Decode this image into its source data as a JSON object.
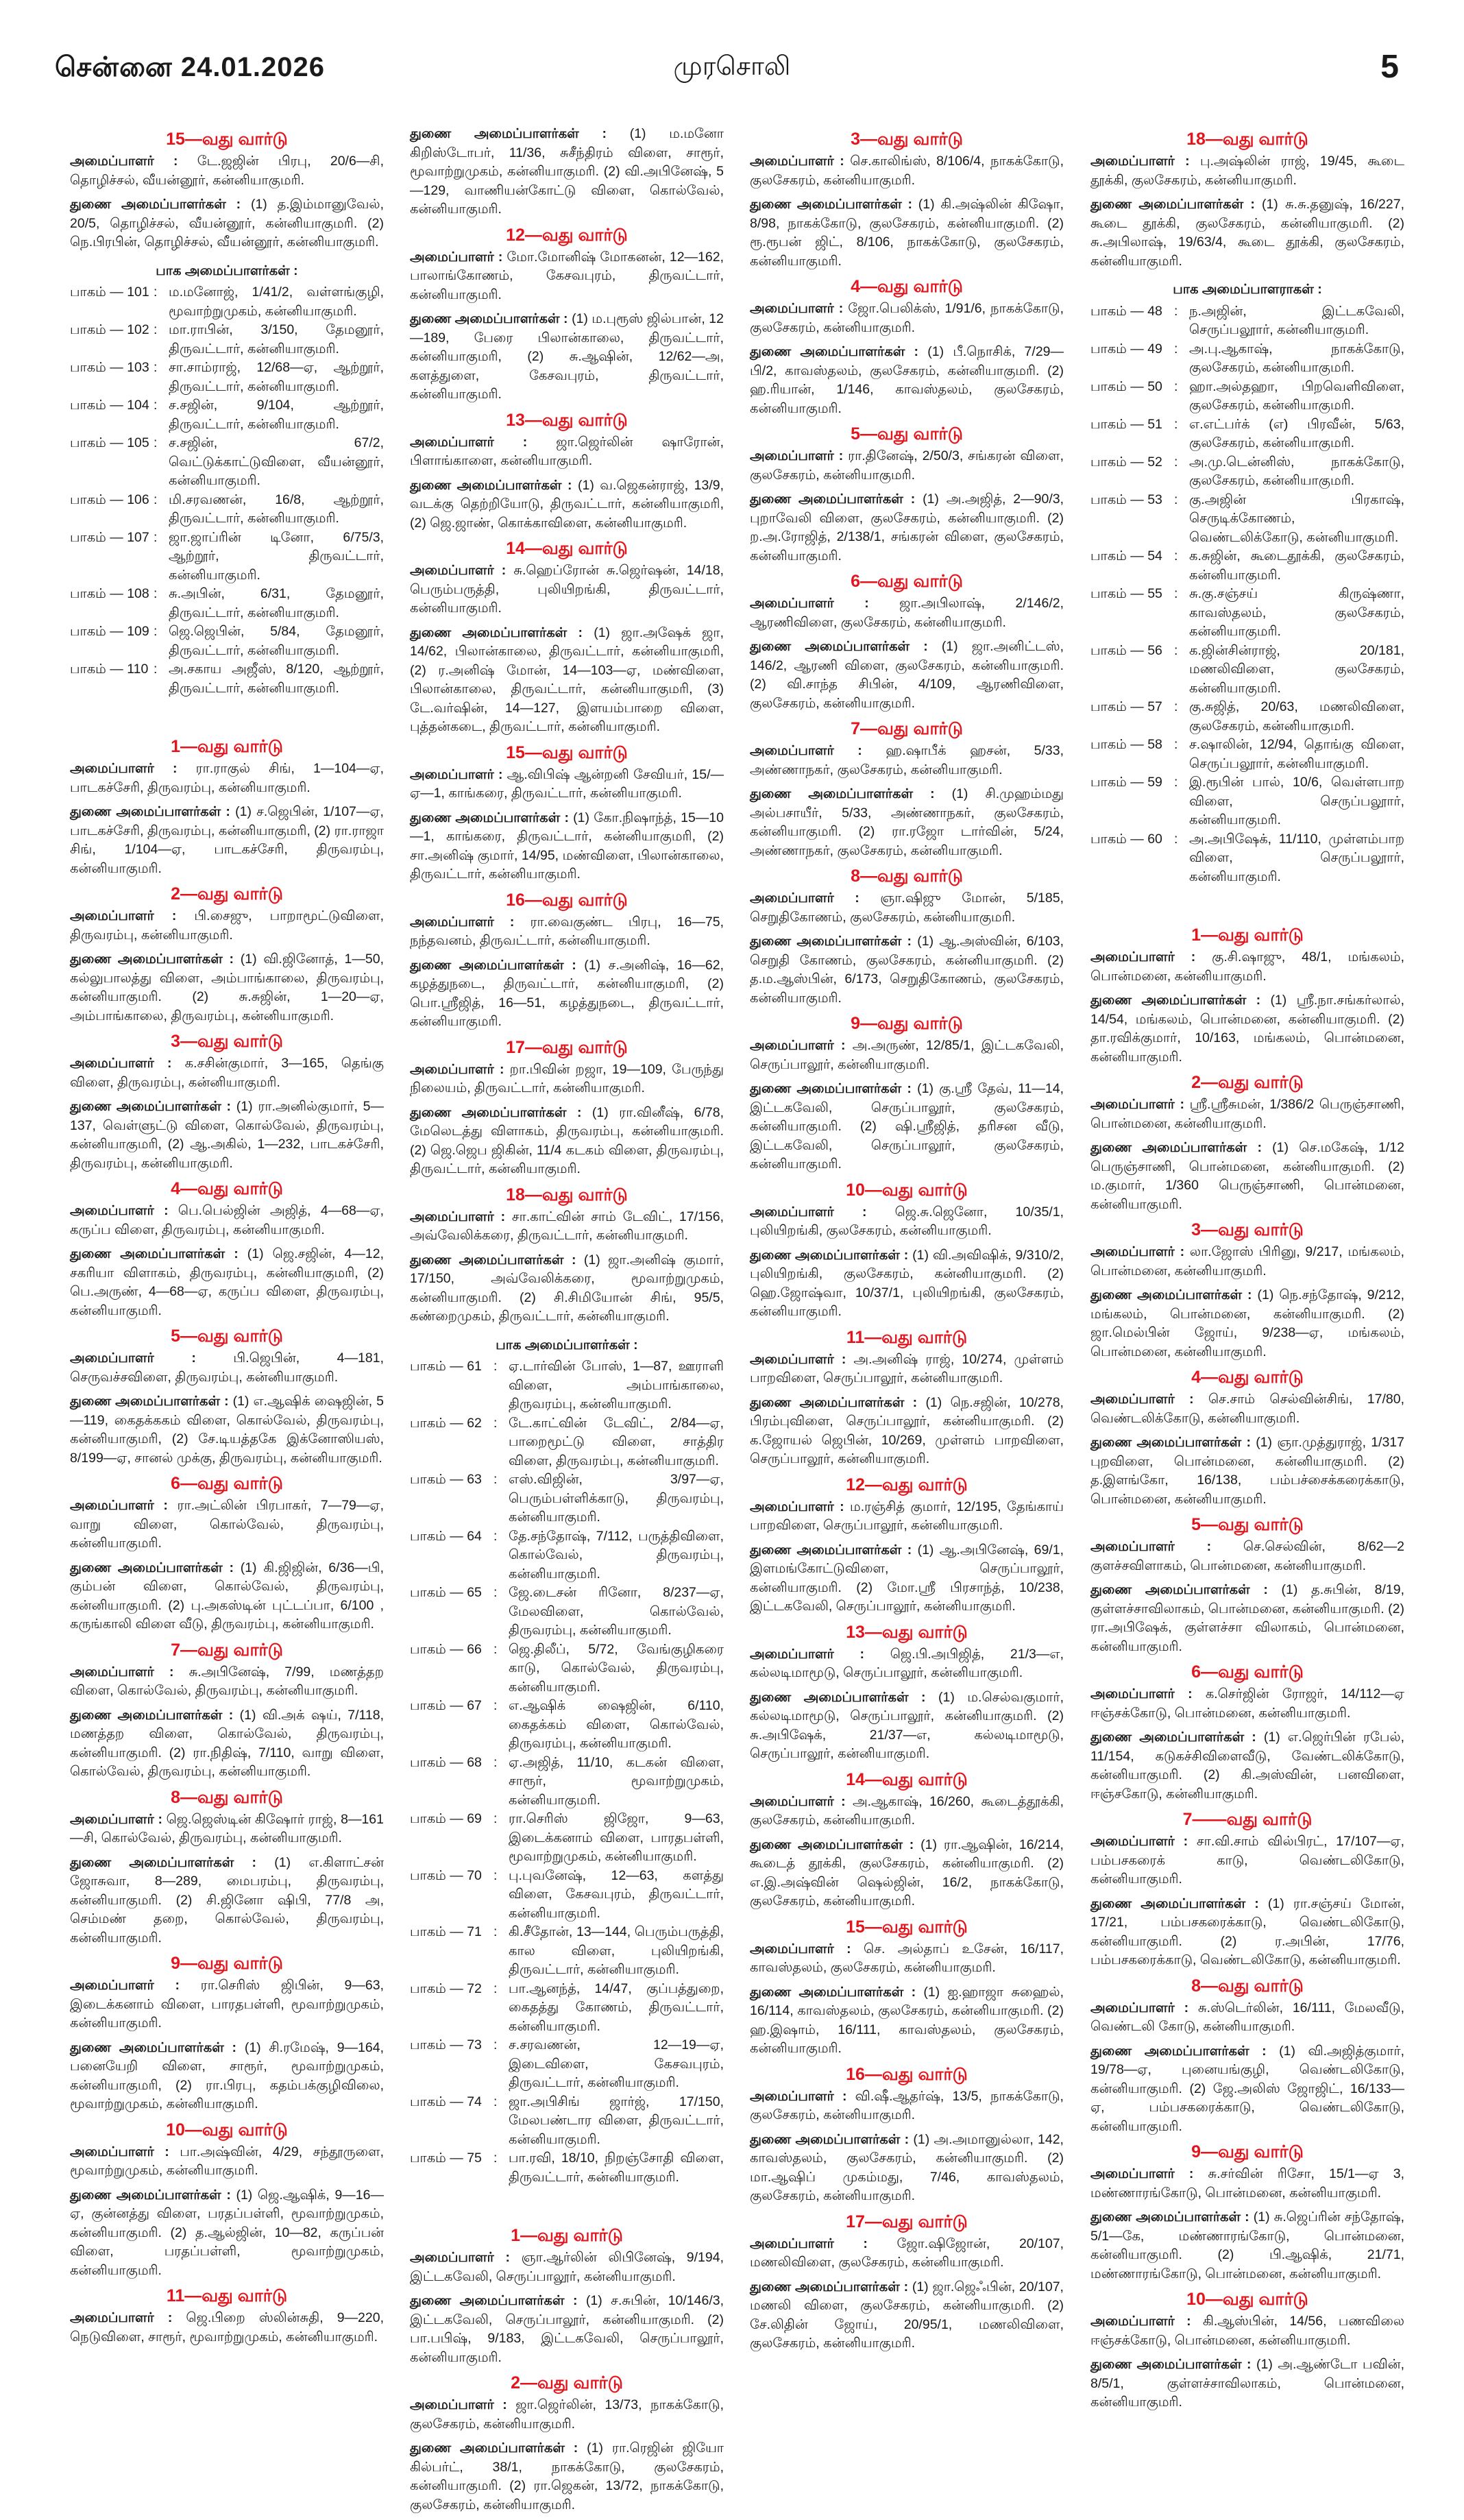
{
  "header": {
    "date": "சென்னை 24.01.2026",
    "title": "முரசொலி",
    "page": "5"
  },
  "labels": {
    "organizer": "அமைப்பாளர் :",
    "deputies": "துணை அமைப்பாளர்கள் :",
    "colon": ":"
  },
  "colors": {
    "heading": "#e4141c",
    "text": "#1a1a1a"
  },
  "columns": [
    [
      {
        "heading": "15—வது வார்டு",
        "main": "டே.ஜஜின் பிரபு, 20/6—சி, தொழிச்சல், வீயன்னூர், கன்னியாகுமரி.",
        "deputies": "(1) த.இம்மானுவேல், 20/5, தொழிச்சல், வீயன்னூர், கன்னியாகுமரி. (2) நெ.பிரபின், தொழிச்சல், வீயன்னூர், கன்னியாகுமரி."
      },
      {
        "booth_heading": "பாக அமைப்பாளர்கள் :",
        "rows": [
          {
            "label": "பாகம் — 101",
            "text": "ம.மனோஜ், 1/41/2, வள்ளங்குழி, மூவாற்றுமுகம், கன்னியாகுமரி."
          },
          {
            "label": "பாகம் — 102",
            "text": "மா.ராபின், 3/150, தேமனூர், திருவட்டார், கன்னியாகுமரி."
          },
          {
            "label": "பாகம் — 103",
            "text": "சா.சாம்ராஜ், 12/68—ஏ, ஆற்றூர், திருவட்டார், கன்னியாகுமரி."
          },
          {
            "label": "பாகம் — 104",
            "text": "ச.சஜின், 9/104, ஆற்றூர், திருவட்டார், கன்னியாகுமரி."
          },
          {
            "label": "பாகம் — 105",
            "text": "ச.சஜின், 67/2, வெட்டுக்காட்டுவிளை, வீயன்னூர், கன்னியாகுமரி."
          },
          {
            "label": "பாகம் — 106",
            "text": "மி.சரவணன், 16/8, ஆற்றூர், திருவட்டார், கன்னியாகுமரி."
          },
          {
            "label": "பாகம் — 107",
            "text": "ஜா.ஜாப்ரின் டினோ, 6/75/3, ஆற்றூர், திருவட்டார், கன்னியாகுமரி."
          },
          {
            "label": "பாகம் — 108",
            "text": "சு.அபின், 6/31, தேமனூர், திருவட்டார், கன்னியாகுமரி."
          },
          {
            "label": "பாகம் — 109",
            "text": "ஜெ.ஜெபின், 5/84, தேமனூர், திருவட்டார், கன்னியாகுமரி."
          },
          {
            "label": "பாகம் — 110",
            "text": "அ.சகாய அஜீஸ், 8/120, ஆற்றூர், திருவட்டார், கன்னியாகுமரி."
          }
        ]
      },
      {
        "heading": "1—வது வார்டு",
        "main": "ரா.ராகுல் சிங், 1—104—ஏ, பாடகச்சேரி, திருவரம்பு, கன்னியாகுமரி.",
        "deputies": "(1) ச.ஜெபின், 1/107—ஏ, பாடகச்சேரி, திருவரம்பு, கன்னியாகுமரி, (2) ரா.ராஜா சிங், 1/104—ஏ, பாடகச்சேரி, திருவரம்பு, கன்னியாகுமரி."
      },
      {
        "heading": "2—வது வார்டு",
        "main": "பி.சைஜு, பாறாமூட்டுவிளை, திருவரம்பு, கன்னியாகுமரி.",
        "deputies": "(1) வி.ஜினோத், 1—50, கல்லுபாலத்து விளை, அம்பாங்காலை, திருவரம்பு, கன்னியாகுமரி. (2) சு.சுஜின், 1—20—ஏ, அம்பாங்காலை, திருவரம்பு, கன்னியாகுமரி."
      },
      {
        "heading": "3—வது வார்டு",
        "main": "க.சசின்குமார், 3—165, தெங்கு விளை, திருவரம்பு, கன்னியாகுமரி.",
        "deputies": "(1) ரா.அனில்குமார், 5—137, வெள்ளுட்டு விளை, கொல்வேல், திருவரம்பு, கன்னியாகுமரி, (2) ஆ.அகில், 1—232, பாடகச்சேரி, திருவரம்பு, கன்னியாகுமரி."
      },
      {
        "heading": "4—வது வார்டு",
        "main": "பெ.பெல்ஜின் அஜித், 4—68—ஏ, கருப்ப விளை, திருவரம்பு, கன்னியாகுமரி.",
        "deputies": "(1) ஜெ.சஜின், 4—12, சகரியா விளாகம், திருவரம்பு, கன்னியாகுமரி, (2) பெ.அருண், 4—68—ஏ, கருப்ப விளை, திருவரம்பு, கன்னியாகுமரி."
      },
      {
        "heading": "5—வது வார்டு",
        "main": "பி.ஜெபின், 4—181, செருவச்சவிளை, திருவரம்பு, கன்னியாகுமரி.",
        "deputies": "(1) எ.ஆஷிக் ஷைஜின், 5—119, கைதக்ககம் விளை, கொல்வேல், திருவரம்பு, கன்னியாகுமரி, (2) சே.டியத்தகே இக்னோஸியஸ், 8/199—ஏ, சானல் முக்கு, திருவரம்பு, கன்னியாகுமரி."
      },
      {
        "heading": "6—வது வார்டு",
        "main": "ரா.அட்லின் பிரபாகர், 7—79—ஏ, வாறு விளை, கொல்வேல், திருவரம்பு, கன்னியாகுமரி.",
        "deputies": "(1) கி.ஜிஜின், 6/36—பி, கும்பன் விளை, கொல்வேல், திருவரம்பு, கன்னியாகுமரி. (2) பு.அகஸ்டின் புட்டப்பா, 6/100 , கருங்காலி விளை வீடு, திருவரம்பு, கன்னியாகுமரி."
      },
      {
        "heading": "7—வது வார்டு",
        "main": "சு.அபினேஷ், 7/99, மணத்தற விளை, கொல்வேல், திருவரம்பு, கன்னியாகுமரி.",
        "deputies": "(1) வி.அக் ஷய், 7/118, மணத்தற விளை, கொல்வேல், திருவரம்பு, கன்னியாகுமரி. (2) ரா.நிதிஷ், 7/110, வாறு விளை, கொல்வேல், திருவரம்பு, கன்னியாகுமரி."
      },
      {
        "heading": "8—வது வார்டு",
        "main": "ஜெ.ஜெஸ்டின் கிஷோர் ராஜ், 8—161—சி, கொல்வேல், திருவரம்பு, கன்னியாகுமரி.",
        "deputies": "(1) எ.கிளாட்சன் ஜோசுவா, 8—289, மைபரம்பு, திருவரம்பு, கன்னியாகுமரி. (2) சி.ஜினோ ஷிபி, 77/8 அ, செம்மண் தறை, கொல்வேல், திருவரம்பு, கன்னியாகுமரி."
      },
      {
        "heading": "9—வது வார்டு",
        "main": "ரா.செரிஸ் ஜிபின், 9—63, இடைக்கனாம் விளை, பாரதபள்ளி, மூவாற்றுமுகம், கன்னியாகுமரி.",
        "deputies": "(1) சி.ரமேஷ், 9—164, பனையேறி விளை, சாரூர், மூவாற்றுமுகம், கன்னியாகுமரி, (2) ரா.பிரபு, கதம்பக்குழிவிலை, மூவாற்றுமுகம், கன்னியாகுமரி."
      },
      {
        "heading": "10—வது வார்டு",
        "main": "பா.அஷ்வின், 4/29, சந்தூருளை, மூவாற்றுமுகம், கன்னியாகுமரி.",
        "deputies": "(1) ஜெ.ஆஷிக், 9—16—ஏ, குன்னத்து விளை, பரதப்பள்ளி, மூவாற்றுமுகம், கன்னியாகுமரி. (2) த.ஆல்ஜின், 10—82, கருப்பன் விளை, பரதப்பள்ளி, மூவாற்றுமுகம், கன்னியாகுமரி."
      },
      {
        "heading": "11—வது வார்டு",
        "main": "ஜெ.பிறை ஸ்லின்சுதி, 9—220, நெடுவிளை, சாரூர், மூவாற்றுமுகம், கன்னியாகுமரி."
      }
    ],
    [
      {
        "deputies": "(1) ம.மனோ கிறிஸ்டோபர், 11/36, சுசீந்திரம் விளை, சாரூர், மூவாற்றுமுகம், கன்னியாகுமரி. (2) வி.அபினேஷ், 5—129, வாணியன்கோட்டு விளை, கொல்வேல், கன்னியாகுமரி."
      },
      {
        "heading": "12—வது வார்டு",
        "main": "மோ.மோனிஷ் மோகனன், 12—162, பாலாங்கோணம், கேசவபுரம், திருவட்டார், கன்னியாகுமரி.",
        "deputies": "(1) ம.புரூஸ் ஜில்பான், 12—189, பேரை பிலான்காலை, திருவட்டார், கன்னியாகுமரி, (2) சு.ஆஷின், 12/62—அ, களத்துளை, கேசவபுரம், திருவட்டார், கன்னியாகுமரி."
      },
      {
        "heading": "13—வது வார்டு",
        "main": "ஜா.ஜெர்லின் ஷாரோன், பிளாங்காளை, கன்னியாகுமரி.",
        "deputies": "(1) வ.ஜெகன்ராஜ், 13/9, வடக்கு தெற்றியோடு, திருவட்டார், கன்னியாகுமரி, (2) ஜெ.ஜாண், கொக்காவிளை, கன்னியாகுமரி."
      },
      {
        "heading": "14—வது வார்டு",
        "main": "சு.ஹெப்ரோன் சு.ஜெர்ஷன், 14/18, பெரும்பருத்தி, புலியிறங்கி, திருவட்டார், கன்னியாகுமரி.",
        "deputies": "(1) ஜா.அஷேக் ஜா, 14/62, பிலான்காலை, திருவட்டார், கன்னியாகுமரி, (2) ர.அனிஷ் மோன், 14—103—ஏ, மண்விளை, பிலான்காலை, திருவட்டார், கன்னியாகுமரி, (3) டே.வர்ஷின், 14—127, இளயம்பாறை விளை, புத்தன்கடை, திருவட்டார், கன்னியாகுமரி."
      },
      {
        "heading": "15—வது வார்டு",
        "main": "ஆ.விபிஷ் ஆன்றனி சேவியர், 15/—ஏ—1, காங்கரை, திருவட்டார், கன்னியாகுமரி.",
        "deputies": "(1) கோ.நிஷாந்த், 15—10—1, காங்கரை, திருவட்டார், கன்னியாகுமரி, (2) சா.அனிஷ் குமார், 14/95, மண்விளை, பிலான்காலை, திருவட்டார், கன்னியாகுமரி."
      },
      {
        "heading": "16—வது வார்டு",
        "main": "ரா.வைகுண்ட பிரபு, 16—75, நந்தவனம், திருவட்டார், கன்னியாகுமரி.",
        "deputies": "(1) ச.அனிஷ், 16—62, கழத்துநடை, திருவட்டார், கன்னியாகுமரி, (2) பொ.ஸ்ரீஜித், 16—51, கழத்துநடை, திருவட்டார், கன்னியாகுமரி."
      },
      {
        "heading": "17—வது வார்டு",
        "main": "றா.பிவின் றஜா, 19—109, பேருந்து நிலையம், திருவட்டார், கன்னியாகுமரி.",
        "deputies": "(1) ரா.வினீஷ், 6/78, மேலெடத்து விளாகம், திருவரம்பு, கன்னியாகுமரி.(2) ஜெ.ஜெப ஜிகின், 11/4 கடகம் விளை, திருவரம்பு, திருவட்டார், கன்னியாகுமரி."
      },
      {
        "heading": "18—வது வார்டு",
        "main": "சா.காட்வின் சாம் டேவிட், 17/156, அவ்வேலிக்கரை, திருவட்டார், கன்னியாகுமரி.",
        "deputies": "(1) ஜா.அனிஷ் குமார், 17/150, அவ்வேலிக்கரை, மூவாற்றுமுகம், கன்னியாகுமரி. (2) சி.சிமியோன் சிங், 95/5, கண்றைமுகம், திருவட்டார், கன்னியாகுமரி."
      },
      {
        "booth_heading": "பாக அமைப்பாளர்கள் :",
        "rows": [
          {
            "label": "பாகம் — 61",
            "text": "ஏ.டார்வின் போஸ், 1—87, ஊராளி விளை, அம்பாங்காலை, திருவரம்பு, கன்னியாகுமரி."
          },
          {
            "label": "பாகம் — 62",
            "text": "டே.காட்வின் டேவிட், 2/84—ஏ, பாறைமூட்டு விளை, சாத்திர விளை, திருவரம்பு, கன்னியாகுமரி."
          },
          {
            "label": "பாகம் — 63",
            "text": "எஸ்.விஜின், 3/97—ஏ, பெரும்பள்ளிக்காடு, திருவரம்பு, கன்னியாகுமரி."
          },
          {
            "label": "பாகம் — 64",
            "text": "தே.சந்தோஷ், 7/112, பருத்திவிளை, கொல்வேல், திருவரம்பு, கன்னியாகுமரி."
          },
          {
            "label": "பாகம் — 65",
            "text": "ஜே.டைசன் ரினோ, 8/237—ஏ, மேலவிளை, கொல்வேல், திருவரம்பு, கன்னியாகுமரி."
          },
          {
            "label": "பாகம் — 66",
            "text": "ஜெ.திலீப், 5/72, வேங்குழிகரை காடு, கொல்வேல், திருவரம்பு, கன்னியாகுமரி."
          },
          {
            "label": "பாகம் — 67",
            "text": "எ.ஆஷிக் ஷைஜின், 6/110, கைதக்கம் விளை, கொல்வேல், திருவரம்பு, கன்னியாகுமரி."
          },
          {
            "label": "பாகம் — 68",
            "text": "ஏ.அஜித், 11/10, கடகன் விளை, சாரூர், மூவாற்றுமுகம், கன்னியாகுமரி."
          },
          {
            "label": "பாகம் — 69",
            "text": "ரா.செரிஸ் ஜிஜோ, 9—63, இடைக்கனாம் விளை, பாரதபள்ளி, மூவாற்றுமுகம், கன்னியாகுமரி."
          },
          {
            "label": "பாகம் — 70",
            "text": "பு.புவனேஷ், 12—63, களத்து விளை, கேசவபுரம், திருவட்டார், கன்னியாகுமரி."
          },
          {
            "label": "பாகம் — 71",
            "text": "கி.சீதோன், 13—144, பெரும்பருத்தி, கால விளை, புலியிறங்கி, திருவட்டார், கன்னியாகுமரி."
          },
          {
            "label": "பாகம் — 72",
            "text": "பா.ஆனந்த், 14/47, குப்பத்துறை, கைதத்து கோணம், திருவட்டார், கன்னியாகுமரி."
          },
          {
            "label": "பாகம் — 73",
            "text": "ச.சரவணன், 12—19—ஏ, இடைவிளை, கேசவபுரம், திருவட்டார், கன்னியாகுமரி."
          },
          {
            "label": "பாகம் — 74",
            "text": "ஜா.அபிசிங் ஜார்ஜ், 17/150, மேலபண்டார விளை, திருவட்டார், கன்னியாகுமரி."
          },
          {
            "label": "பாகம் — 75",
            "text": "பா.ரவி, 18/10, நிறஞ்சோதி விளை, திருவட்டார், கன்னியாகுமரி."
          }
        ]
      },
      {
        "heading": "1—வது வார்டு",
        "main": "ஞா.ஆர்லின் லிபினேஷ், 9/194, இட்டகவேலி, செருப்பாலூர், கன்னியாகுமரி.",
        "deputies": "(1) ச.சுபின், 10/146/3, இட்டகவேலி, செருப்பாலூர், கன்னியாகுமரி. (2) பா.பபிஷ், 9/183, இட்டகவேலி, செருப்பாலூர், கன்னியாகுமரி."
      },
      {
        "heading": "2—வது வார்டு",
        "main": "ஜா.ஜெர்லின், 13/73, நாகக்கோடு, குலசேகரம், கன்னியாகுமரி.",
        "deputies": "(1) ரா.ரெஜின் ஜியோ கில்பர்ட், 38/1, நாகக்கோடு, குலசேகரம், கன்னியாகுமரி. (2) ரா.ஜெகன், 13/72, நாகக்கோடு, குலசேகரம், கன்னியாகுமரி."
      }
    ],
    [
      {
        "heading": "3—வது வார்டு",
        "main": "செ.காலிங்ஸ், 8/106/4, நாகக்கோடு, குலசேகரம், கன்னியாகுமரி.",
        "deputies": "(1) கி.அஷ்லின் கிஷோ, 8/98, நாகக்கோடு, குலசேகரம், கன்னியாகுமரி. (2) ரூ.ரூபன் ஜிட், 8/106, நாகக்கோடு, குலசேகரம், கன்னியாகுமரி."
      },
      {
        "heading": "4—வது வார்டு",
        "main": "ஜோ.பெலிக்ஸ், 1/91/6, நாகக்கோடு, குலசேகரம், கன்னியாகுமரி.",
        "deputies": "(1) பீ.நொசிக், 7/29—பி/2, காவஸ்தலம், குலசேகரம், கன்னியாகுமரி. (2) ஹ.ரியான், 1/146, காவஸ்தலம், குலசேகரம், கன்னியாகுமரி."
      },
      {
        "heading": "5—வது வார்டு",
        "main": "ரா.தினேஷ், 2/50/3, சங்கரன் விளை, குலசேகரம், கன்னியாகுமரி.",
        "deputies": "(1) அ.அஜித், 2—90/3, புறாவேலி விளை, குலசேகரம், கன்னியாகுமரி. (2) ற.அ.ரோஜித், 2/138/1, சங்கரன் விளை, குலசேகரம், கன்னியாகுமரி."
      },
      {
        "heading": "6—வது வார்டு",
        "main": "ஜா.அபிலாஷ், 2/146/2, ஆரணிவிளை, குலசேகரம், கன்னியாகுமரி.",
        "deputies": "(1) ஜா.அனிட்டஸ், 146/2, ஆரணி விளை, குலசேகரம், கன்னியாகுமரி. (2) வி.சாந்த சிபின், 4/109, ஆரணிவிளை, குலசேகரம், கன்னியாகுமரி."
      },
      {
        "heading": "7—வது வார்டு",
        "main": "ஹ.ஷாபீக் ஹசன், 5/33, அண்ணாநகர், குலசேகரம், கன்னியாகுமரி.",
        "deputies": "(1) சி.முஹம்மது அல்பசாயீர், 5/33, அண்ணாநகர், குலசேகரம், கன்னியாகுமரி. (2) ரா.ரஜோ டார்வின், 5/24, அண்ணாநகர், குலசேகரம், கன்னியாகுமரி."
      },
      {
        "heading": "8—வது வார்டு",
        "main": "ஞா.ஷிஜு மோன், 5/185, செறுதிகோணம், குலசேகரம், கன்னியாகுமரி.",
        "deputies": "(1) ஆ.அஸ்வின், 6/103, செறுதி கோணம், குலசேகரம், கன்னியாகுமரி. (2) த.ம.ஆஸ்பின், 6/173, செறுதிகோணம், குலசேகரம், கன்னியாகுமரி."
      },
      {
        "heading": "9—வது வார்டு",
        "main": "அ.அருண், 12/85/1, இட்டகவேலி, செருப்பாலூர், கன்னியாகுமரி.",
        "deputies": "(1) கு.ஸ்ரீ தேவ், 11—14, இட்டகவேலி, செருப்பாலூர், குலசேகரம், கன்னியாகுமரி. (2) ஷி.ஸ்ரீஜித், தரிசன வீடு, இட்டகவேலி, செருப்பாலூர், குலசேகரம், கன்னியாகுமரி."
      },
      {
        "heading": "10—வது வார்டு",
        "main": "ஜெ.சு.ஜெனோ, 10/35/1, புலியிறங்கி, குலசேகரம், கன்னியாகுமரி.",
        "deputies": "(1) வி.அவிஷிக், 9/310/2, புலியிறங்கி, குலசேகரம், கன்னியாகுமரி. (2) ஹெ.ஜோஷ்வா, 10/37/1, புலியிறங்கி, குலசேகரம், கன்னியாகுமரி."
      },
      {
        "heading": "11—வது வார்டு",
        "main": "அ.அனிஷ் ராஜ், 10/274, முள்ளம் பாறவிளை, செருப்பாலூர், கன்னியாகுமரி.",
        "deputies": "(1) நெ.சஜின், 10/278, பிரம்புவிளை, செருப்பாலூர், கன்னியாகுமரி. (2) க.ஜோயல் ஜெபின், 10/269, முள்ளம் பாறவிளை, செருப்பாலூர், கன்னியாகுமரி."
      },
      {
        "heading": "12—வது வார்டு",
        "main": "ம.ரஞ்சித் குமார், 12/195, தேங்காய் பாறவிளை, செருப்பாலூர், கன்னியாகுமரி.",
        "deputies": "(1) ஆ.அபினேஷ், 69/1, இளமங்கோட்டுவிளை, செருப்பாலூர், கன்னியாகுமரி. (2) மோ.ஸ்ரீ பிரசாந்த், 10/238, இட்டகவேலி, செருப்பாலூர், கன்னியாகுமரி."
      },
      {
        "heading": "13—வது வார்டு",
        "main": "ஜெ.பி.அபிஜித், 21/3—எ, கல்லடிமாமூடு, செருப்பாலூர், கன்னியாகுமரி.",
        "deputies": "(1) ம.செல்வகுமார், கல்லடிமாமூடு, செருப்பாலூர், கன்னியாகுமரி. (2) சு.அபிஷேக், 21/37—எ, கல்லடிமாமூடு, செருப்பாலூர், கன்னியாகுமரி."
      },
      {
        "heading": "14—வது வார்டு",
        "main": "அ.ஆகாஷ், 16/260, கூடைத்தூக்கி, குலசேகரம், கன்னியாகுமரி.",
        "deputies": "(1) ரா.ஆஷின், 16/214, கூடைத் தூக்கி, குலசேகரம், கன்னியாகுமரி. (2) எ.இ.அஷ்வின் ஷெல்ஜின், 16/2, நாகக்கோடு, குலசேகரம், கன்னியாகுமரி."
      },
      {
        "heading": "15—வது வார்டு",
        "main": "செ. அல்தாப் உசேன், 16/117, காவஸ்தலம், குலசேகரம், கன்னியாகுமரி.",
        "deputies": "(1) ஐ.ஹாஜா சுஹைல், 16/114, காவஸ்தலம், குலசேகரம், கன்னியாகுமரி. (2) ஹ.இஷாம், 16/111, காவஸ்தலம், குலசேகரம், கன்னியாகுமரி."
      },
      {
        "heading": "16—வது வார்டு",
        "main": "வி.ஷீ.ஆதர்ஷ், 13/5, நாகக்கோடு, குலசேகரம், கன்னியாகுமரி.",
        "deputies": "(1) அ.அமானுல்லா, 142, காவஸ்தலம், குலசேகரம், கன்னியாகுமரி. (2) மா.ஆஷிப் முகம்மது, 7/46, காவஸ்தலம், குலசேகரம், கன்னியாகுமரி."
      },
      {
        "heading": "17—வது வார்டு",
        "main": "ஜோ.ஷிஜோன், 20/107, மணலிவிளை, குலசேகரம், கன்னியாகுமரி.",
        "deputies": "(1) ஜா.ஜெஃபின், 20/107, மணலி விளை, குலசேகரம், கன்னியாகுமரி. (2) சே.லிதின் ஜோய், 20/95/1, மணலிவிளை, குலசேகரம், கன்னியாகுமரி."
      }
    ],
    [
      {
        "heading": "18—வது வார்டு",
        "main": "பு.அஷ்லின் ராஜ், 19/45, கூடை தூக்கி, குலசேகரம், கன்னியாகுமரி.",
        "deputies": "(1) சு.சு.தனுஷ், 16/227, கூடை தூக்கி, குலசேகரம், கன்னியாகுமரி. (2) சு.அபிலாஷ், 19/63/4, கூடை தூக்கி, குலசேகரம், கன்னியாகுமரி."
      },
      {
        "booth_heading": "பாக அமைப்பாளராகள் :",
        "rows": [
          {
            "label": "பாகம் — 48",
            "text": "ந.அஜின், இட்டகவேலி, செருப்பலூார், கன்னியாகுமரி."
          },
          {
            "label": "பாகம் — 49",
            "text": "அ.பு.ஆகாஷ், நாகக்கோடு, குலசேகரம், கன்னியாகுமரி."
          },
          {
            "label": "பாகம் — 50",
            "text": "ஹா.அல்தஹா, பிறவெளிவிளை, குலசேகரம், கன்னியாகுமரி."
          },
          {
            "label": "பாகம் — 51",
            "text": "எ.எட்பர்க் (எ) பிரவீன், 5/63, குலசேகரம், கன்னியாகுமரி."
          },
          {
            "label": "பாகம் — 52",
            "text": "அ.மு.டென்னிஸ், நாகக்கோடு, குலசேகரம், கன்னியாகுமரி."
          },
          {
            "label": "பாகம் — 53",
            "text": "கு.அஜின் பிரகாஷ், செருடிக்கோணம், வெண்டலிக்கோடு, கன்னியாகுமரி."
          },
          {
            "label": "பாகம் — 54",
            "text": "க.சுஜின், கூடைதூக்கி, குலசேகரம், கன்னியாகுமரி."
          },
          {
            "label": "பாகம் — 55",
            "text": "சு.கு.சஞ்சய் கிருஷ்ணா, காவஸ்தலம், குலசேகரம், கன்னியாகுமரி."
          },
          {
            "label": "பாகம் — 56",
            "text": "க.ஜின்சின்ராஜ், 20/181, மணலிவிளை, குலசேகரம், கன்னியாகுமரி."
          },
          {
            "label": "பாகம் — 57",
            "text": "கு.சுஜித், 20/63, மணலிவிளை, குலசேகரம், கன்னியாகுமரி."
          },
          {
            "label": "பாகம் — 58",
            "text": "ச.ஷாலின், 12/94, தொங்கு விளை, செருப்பலூார், கன்னியாகுமரி."
          },
          {
            "label": "பாகம் — 59",
            "text": "இ.ரூபின் பால், 10/6, வெள்ளபாற விளை, செருப்பலூார், கன்னியாகுமரி."
          },
          {
            "label": "பாகம் — 60",
            "text": "அ.அபிஷேக், 11/110, முள்ளம்பாற விளை, செருப்பலூார், கன்னியாகுமரி."
          }
        ]
      },
      {
        "heading": "1—வது வார்டு",
        "main": "கு.சி.ஷாஜு, 48/1, மங்கலம், பொன்மனை, கன்னியாகுமரி.",
        "deputies": "(1) ஸ்ரீ.நா.சங்கர்லால், 14/54, மங்கலம், பொன்மனை, கன்னியாகுமரி. (2) தா.ரவிக்குமார், 10/163, மங்கலம், பொன்மனை, கன்னியாகுமரி."
      },
      {
        "heading": "2—வது வார்டு",
        "main": "ஸ்ரீ.ஸ்ரீசுமன், 1/386/2 பெருஞ்சாணி, பொன்மனை, கன்னியாகுமரி.",
        "deputies": "(1) செ.மகேஷ், 1/12 பெருஞ்சாணி, பொன்மனை, கன்னியாகுமரி. (2) ம.குமார், 1/360 பெருஞ்சாணி, பொன்மனை, கன்னியாகுமரி."
      },
      {
        "heading": "3—வது வார்டு",
        "main": "லா.ஜோஸ் பிரினு, 9/217, மங்கலம், பொன்மனை, கன்னியாகுமரி.",
        "deputies": "(1) நெ.சந்தோஷ், 9/212, மங்கலம், பொன்மனை, கன்னியாகுமரி. (2) ஜா.மெல்பின் ஜோய், 9/238—ஏ, மங்கலம், பொன்மனை, கன்னியாகுமரி."
      },
      {
        "heading": "4—வது வார்டு",
        "main": "செ.சாம் செல்வின்சிங், 17/80, வெண்டலிக்கோடு, கன்னியாகுமரி.",
        "deputies": "(1) ஞா.முத்துராஜ், 1/317 புறவிளை, பொன்மனை, கன்னியாகுமரி. (2) த.இளங்கோ, 16/138, பம்பச்சைக்கரைக்காடு, பொன்மனை, கன்னியாகுமரி."
      },
      {
        "heading": "5—வது வார்டு",
        "main": "செ.செல்வின், 8/62—2 குளச்சவிளாகம், பொன்மனை, கன்னியாகுமரி.",
        "deputies": "(1) த.சுபின், 8/19, குள்ளச்சாவிலாகம், பொன்மனை, கன்னியாகுமரி. (2) ரா.அபிஷேக், குள்ளச்சா விலாகம், பொன்மனை, கன்னியாகுமரி."
      },
      {
        "heading": "6—வது வார்டு",
        "main": "க.செர்ஜின் ரோஜர், 14/112—ஏ ஈஞ்சக்கோடு, பொன்மனை, கன்னியாகுமரி.",
        "deputies": "(1) எ.ஜெர்பின் ரபேல், 11/154, கடுகச்சிவிளைவீடு, வேண்டலிக்கோடு, கன்னியாகுமரி. (2) கி.அஸ்வின், பனவிளை, ஈஞ்சகோடு, கன்னியாகுமரி."
      },
      {
        "heading": "7——வது வார்டு",
        "main": "சா.வி.சாம் வில்பிரட், 17/107—ஏ, பம்பசகரைக் காடு, வெண்டலிகோடு, கன்னியாகுமரி.",
        "deputies": "(1) ரா.சஞ்சய் மோன், 17/21, பம்பசகரைக்காடு, வெண்டலிகோடு, கன்னியாகுமரி. (2) ர.அபின், 17/76, பம்பசகரைக்காடு, வெண்டலிகோடு, கன்னியாகுமரி."
      },
      {
        "heading": "8—வது வார்டு",
        "main": "சு.ஸ்டெர்லின், 16/111, மேலவீடு, வெண்டலி கோடு, கன்னியாகுமரி.",
        "deputies": "(1) வி.அஜித்குமார், 19/78—ஏ, புனையங்குழி, வெண்டலிகோடு, கன்னியாகுமரி. (2) ஜே.அலிஸ் ஜோஜிட், 16/133—ஏ, பம்பசகரைக்காடு, வெண்டலிகோடு, கன்னியாகுமரி."
      },
      {
        "heading": "9—வது வார்டு",
        "main": "சு.சர்வின் ரிசோ, 15/1—ஏ 3, மண்ணாரங்கோடு, பொன்மனை, கன்னியாகுமரி.",
        "deputies": "(1) சு.ஜெப்ரின் சந்தோஷ், 5/1—கே, மண்ணாரங்கோடு, பொன்மனை, கன்னியாகுமரி. (2) பி.ஆஷிக், 21/71, மண்ணாரங்கோடு, பொன்மனை, கன்னியாகுமரி."
      },
      {
        "heading": "10—வது வார்டு",
        "main": "கி.ஆஸ்பின், 14/56, பணவிலை ஈஞ்சக்கோடு, பொன்மனை, கன்னியாகுமரி.",
        "deputies": "(1) அ.ஆண்டோ பவின், 8/5/1, குள்ளச்சாவிலாகம், பொன்மனை, கன்னியாகுமரி."
      }
    ]
  ]
}
